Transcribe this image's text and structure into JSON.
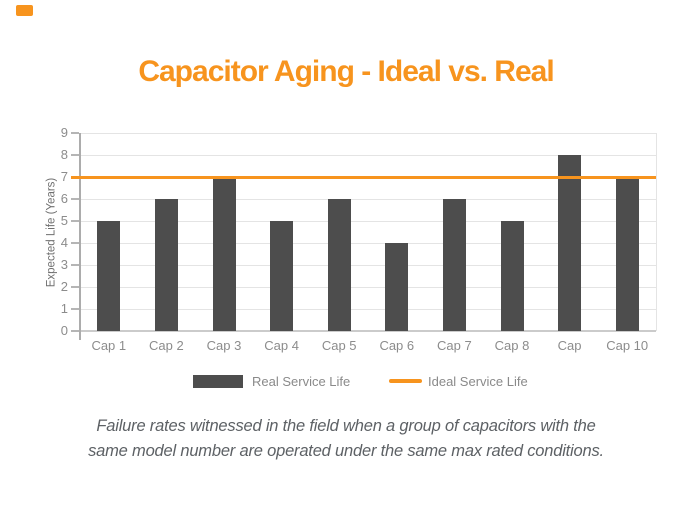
{
  "title": "Capacitor Aging - Ideal vs. Real",
  "chart_data": {
    "type": "bar",
    "title": "Capacitor Aging - Ideal vs. Real",
    "categories": [
      "Cap 1",
      "Cap 2",
      "Cap 3",
      "Cap 4",
      "Cap 5",
      "Cap 6",
      "Cap 7",
      "Cap 8",
      "Cap",
      "Cap 10"
    ],
    "series": [
      {
        "name": "Real Service Life",
        "type": "bar",
        "color": "#4D4D4D",
        "values": [
          5,
          6,
          7,
          5,
          6,
          4,
          6,
          5,
          8,
          7
        ]
      },
      {
        "name": "Ideal Service Life",
        "type": "line",
        "color": "#F7941E",
        "value": 7
      }
    ],
    "xlabel": "",
    "ylabel": "Expected Life (Years)",
    "ylim": [
      0,
      9
    ],
    "yticks": [
      0,
      1,
      2,
      3,
      4,
      5,
      6,
      7,
      8,
      9
    ],
    "grid": true,
    "legend_position": "bottom"
  },
  "caption": {
    "lines": [
      "Failure rates witnessed in the field when a group of capacitors with the",
      "same model number are operated under the same max rated conditions."
    ]
  },
  "colors": {
    "accent_orange": "#F7941E",
    "bar_gray": "#4D4D4D",
    "background": "#FFFFFF"
  }
}
